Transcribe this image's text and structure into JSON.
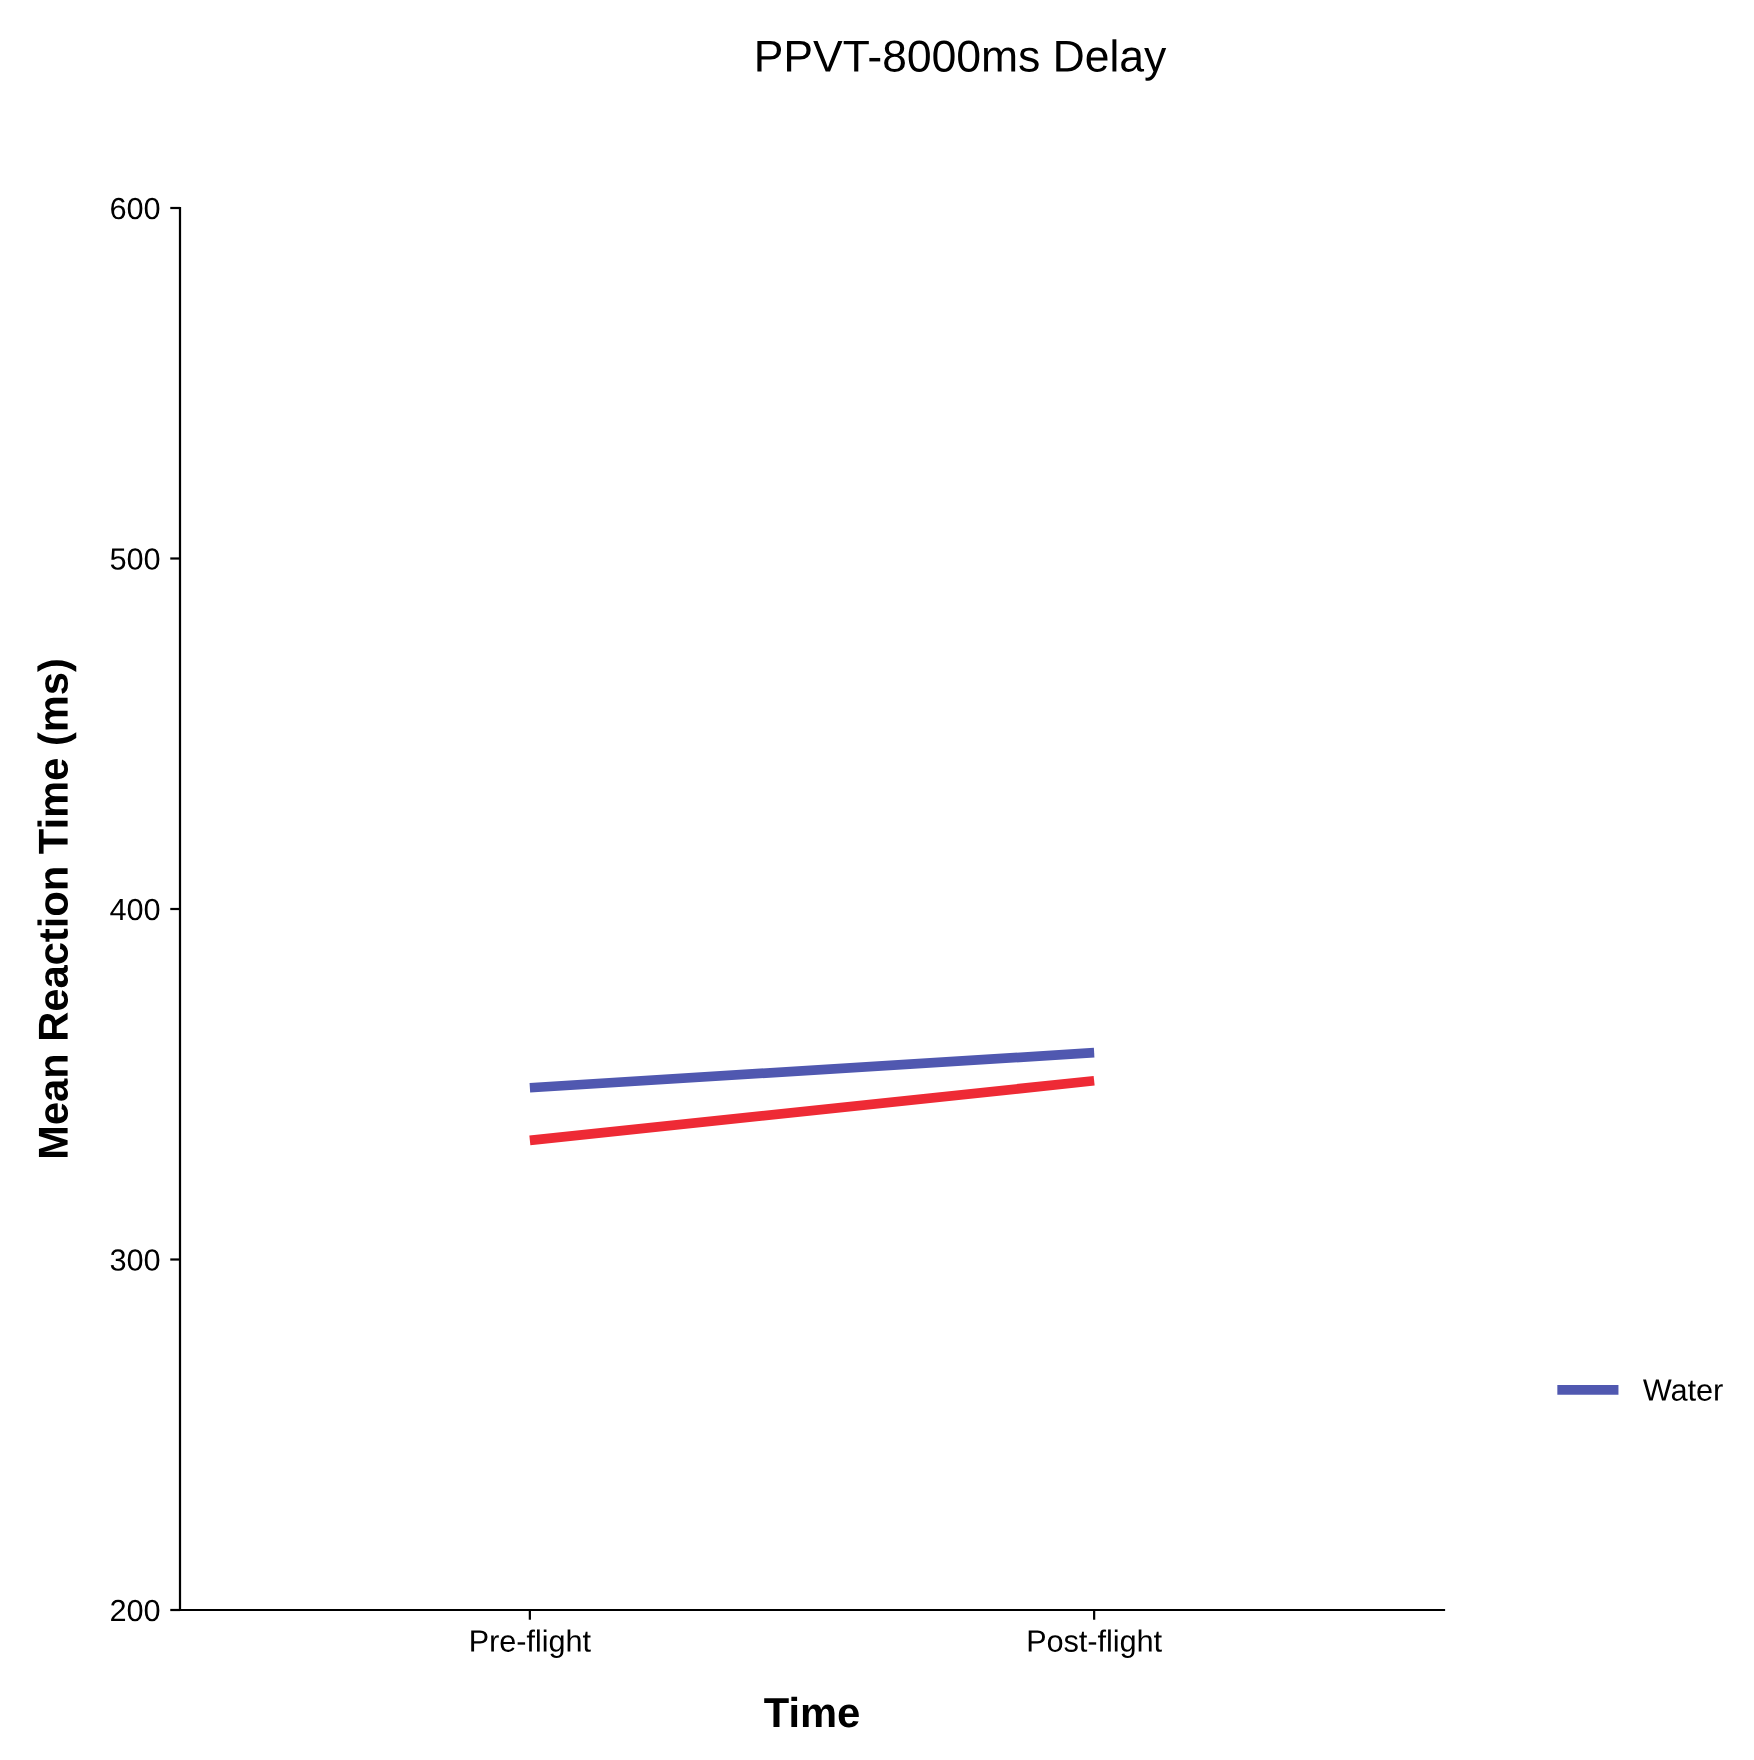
{
  "chart_data": {
    "type": "line",
    "title": "PPVT-8000ms Delay",
    "xlabel": "Time",
    "ylabel": "Mean Reaction Time (ms)",
    "categories": [
      "Pre-flight",
      "Post-flight"
    ],
    "series": [
      {
        "name": "Water",
        "color": "#5058b0",
        "values": [
          349,
          359
        ]
      },
      {
        "color": "#ee2a35",
        "values": [
          334,
          351
        ]
      }
    ],
    "ylim": [
      200,
      600
    ],
    "yticks": [
      200,
      300,
      400,
      500,
      600
    ],
    "grid": false,
    "legend": "right",
    "marker": "none",
    "line_style": "solid"
  }
}
